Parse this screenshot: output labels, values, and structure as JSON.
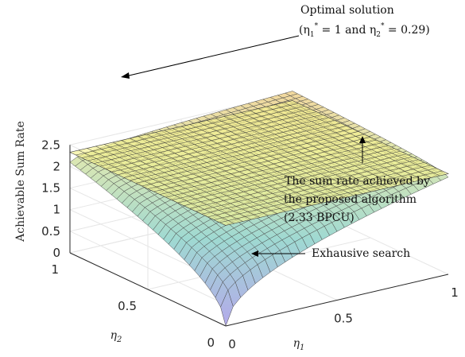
{
  "chart_data": {
    "type": "surface",
    "title": "",
    "xlabel": "η1",
    "ylabel": "η2",
    "zlabel": "Achievable Sum Rate",
    "xlim": [
      0,
      1
    ],
    "ylim": [
      0,
      1
    ],
    "zlim": [
      0,
      2.5
    ],
    "x_ticks": [
      "0",
      "0.5",
      "1"
    ],
    "y_ticks": [
      "0",
      "0.5",
      "1"
    ],
    "z_ticks": [
      "0",
      "0.5",
      "1",
      "1.5",
      "2",
      "2.5"
    ],
    "grid": true,
    "series": [
      {
        "kind": "exhaustive-search-surface",
        "corner_values": {
          "eta1_0_eta2_0": 0.0,
          "eta1_1_eta2_0": 2.25,
          "eta1_0_eta2_1": 2.1,
          "eta1_1_eta2_1": 2.55
        },
        "optimum": {
          "eta1": 1,
          "eta2": 0.29
        }
      },
      {
        "kind": "proposed-algorithm-plane",
        "value": 2.33
      }
    ],
    "annotations": {
      "optimal": {
        "line1": "Optimal solution",
        "eq1_pre": "(η",
        "eq1_sub": "1",
        "eq1_sup": "*",
        "eq1_val": " = 1 and η",
        "eq2_sub": "2",
        "eq2_sup": "*",
        "eq2_val": " = 0.29)"
      },
      "proposed": {
        "line1": "The sum rate achieved by",
        "line2": "the proposed algorithm",
        "line3": "(2.33 BPCU)"
      },
      "exhaustive": "Exhausive search"
    }
  }
}
